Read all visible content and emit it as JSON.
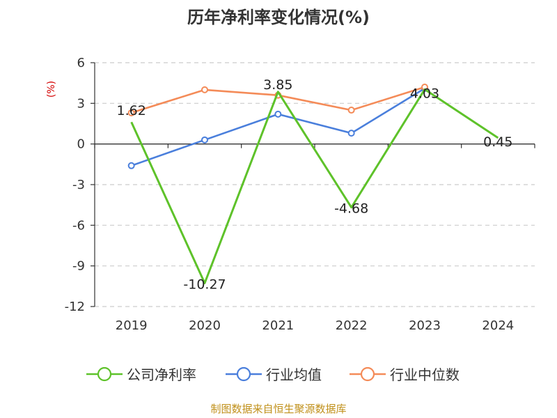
{
  "chart_data": {
    "type": "line",
    "title": "历年净利率变化情况(%)",
    "ylabel": "(%)",
    "categories": [
      "2019",
      "2020",
      "2021",
      "2022",
      "2023",
      "2024"
    ],
    "ylim": [
      -12,
      6
    ],
    "yticks": [
      6,
      3,
      0,
      -3,
      -6,
      -9,
      -12
    ],
    "ytick_labels": [
      "6",
      "3",
      "0",
      "-3",
      "-6",
      "-9",
      "-12"
    ],
    "grid": true,
    "legend_position": "bottom",
    "series": [
      {
        "name": "公司净利率",
        "color": "#5ec22a",
        "values": [
          1.62,
          -10.27,
          3.85,
          -4.68,
          4.03,
          0.45
        ],
        "labels": [
          "1.62",
          "-10.27",
          "3.85",
          "-4.68",
          "4.03",
          "0.45"
        ]
      },
      {
        "name": "行业均值",
        "color": "#4a7fdc",
        "values": [
          -1.6,
          0.3,
          2.2,
          0.8,
          4.1,
          null
        ]
      },
      {
        "name": "行业中位数",
        "color": "#f48b58",
        "values": [
          2.3,
          4.0,
          3.6,
          2.5,
          4.2,
          null
        ]
      }
    ]
  },
  "footer": {
    "source": "制图数据来自恒生聚源数据库"
  }
}
